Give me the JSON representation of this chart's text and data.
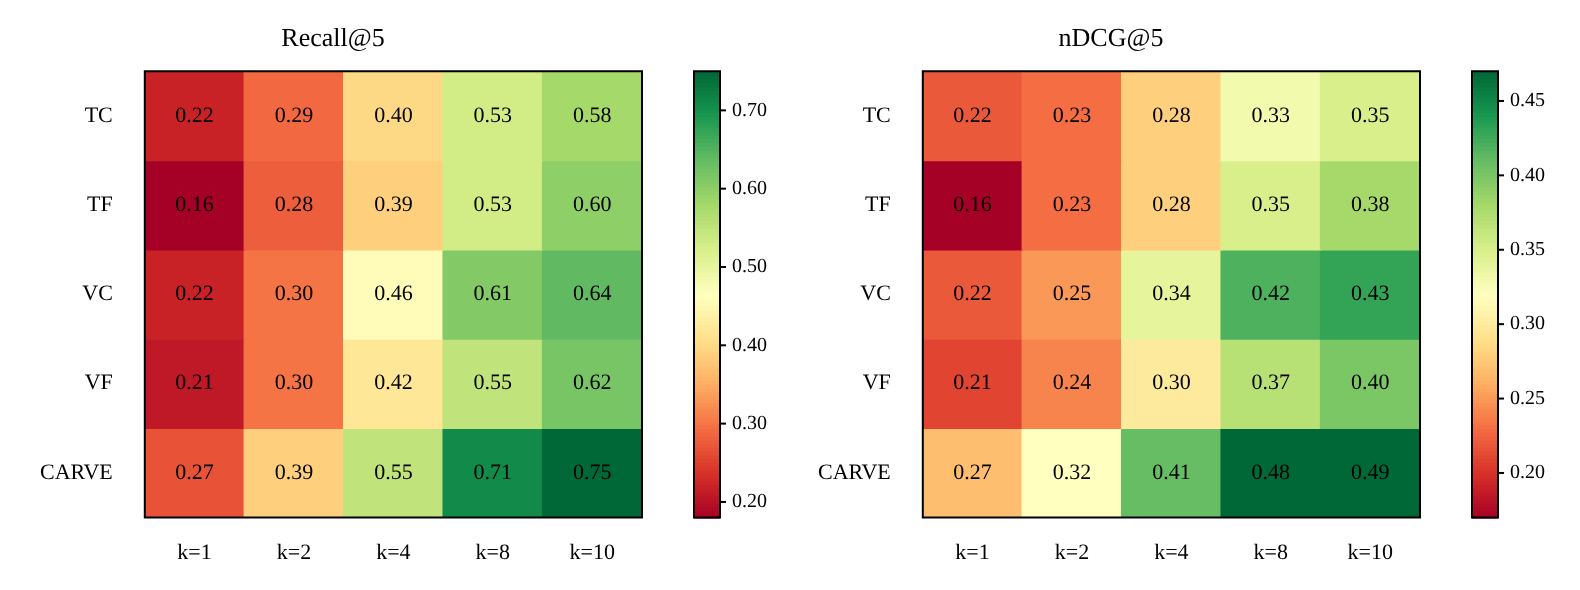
{
  "chart_data": [
    {
      "type": "heatmap",
      "title": "Recall@5",
      "categories": [
        "k=1",
        "k=2",
        "k=4",
        "k=8",
        "k=10"
      ],
      "y_categories": [
        "TC",
        "TF",
        "VC",
        "VF",
        "CARVE"
      ],
      "cells": [
        [
          0.22,
          0.29,
          0.4,
          0.53,
          0.58
        ],
        [
          0.16,
          0.28,
          0.39,
          0.53,
          0.6
        ],
        [
          0.22,
          0.3,
          0.46,
          0.61,
          0.64
        ],
        [
          0.21,
          0.3,
          0.42,
          0.55,
          0.62
        ],
        [
          0.27,
          0.39,
          0.55,
          0.71,
          0.75
        ]
      ],
      "cell_labels": [
        [
          "0.22",
          "0.29",
          "0.40",
          "0.53",
          "0.58"
        ],
        [
          "0.16",
          "0.28",
          "0.39",
          "0.53",
          "0.60"
        ],
        [
          "0.22",
          "0.30",
          "0.46",
          "0.61",
          "0.64"
        ],
        [
          "0.21",
          "0.30",
          "0.42",
          "0.55",
          "0.62"
        ],
        [
          "0.27",
          "0.39",
          "0.55",
          "0.71",
          "0.75"
        ]
      ],
      "clim": [
        0.18,
        0.75
      ],
      "cticks": [
        {
          "value": 0.2,
          "label": "0.20"
        },
        {
          "value": 0.3,
          "label": "0.30"
        },
        {
          "value": 0.4,
          "label": "0.40"
        },
        {
          "value": 0.5,
          "label": "0.50"
        },
        {
          "value": 0.6,
          "label": "0.60"
        },
        {
          "value": 0.7,
          "label": "0.70"
        }
      ]
    },
    {
      "type": "heatmap",
      "title": "nDCG@5",
      "categories": [
        "k=1",
        "k=2",
        "k=4",
        "k=8",
        "k=10"
      ],
      "y_categories": [
        "TC",
        "TF",
        "VC",
        "VF",
        "CARVE"
      ],
      "cells": [
        [
          0.22,
          0.23,
          0.28,
          0.33,
          0.35
        ],
        [
          0.16,
          0.23,
          0.28,
          0.35,
          0.38
        ],
        [
          0.22,
          0.25,
          0.34,
          0.42,
          0.43
        ],
        [
          0.21,
          0.24,
          0.3,
          0.37,
          0.4
        ],
        [
          0.27,
          0.32,
          0.41,
          0.48,
          0.49
        ]
      ],
      "cell_labels": [
        [
          "0.22",
          "0.23",
          "0.28",
          "0.33",
          "0.35"
        ],
        [
          "0.16",
          "0.23",
          "0.28",
          "0.35",
          "0.38"
        ],
        [
          "0.22",
          "0.25",
          "0.34",
          "0.42",
          "0.43"
        ],
        [
          "0.21",
          "0.24",
          "0.30",
          "0.37",
          "0.40"
        ],
        [
          "0.27",
          "0.32",
          "0.41",
          "0.48",
          "0.49"
        ]
      ],
      "clim": [
        0.17,
        0.47
      ],
      "cticks": [
        {
          "value": 0.2,
          "label": "0.20"
        },
        {
          "value": 0.25,
          "label": "0.25"
        },
        {
          "value": 0.3,
          "label": "0.30"
        },
        {
          "value": 0.35,
          "label": "0.35"
        },
        {
          "value": 0.4,
          "label": "0.40"
        },
        {
          "value": 0.45,
          "label": "0.45"
        }
      ]
    }
  ]
}
